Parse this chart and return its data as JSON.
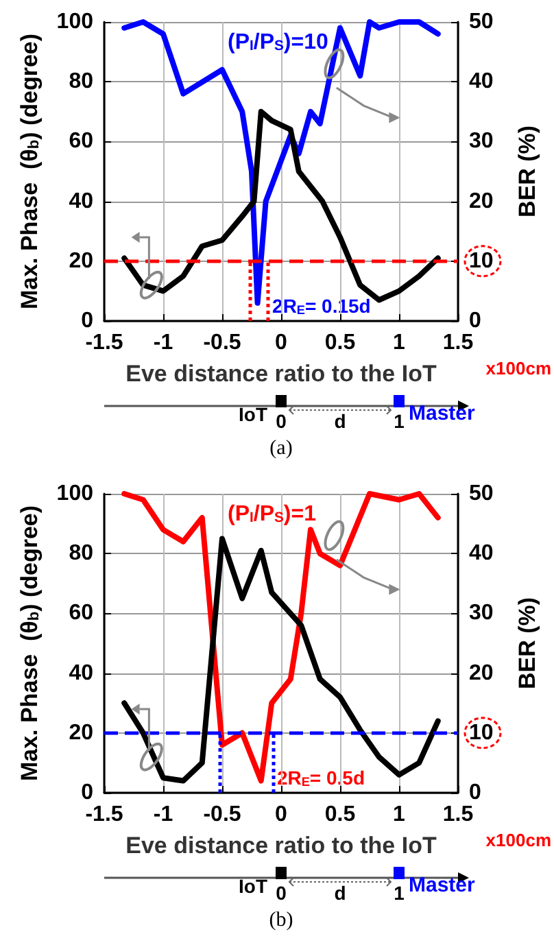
{
  "chart_data": [
    {
      "type": "line",
      "xlabel": "Eve distance ratio to the IoT",
      "ylabel": "Max. Phase  (θ$_{b}$) (degree)",
      "y2label": "BER (%)",
      "xlim": [
        -1.5,
        1.5
      ],
      "xticks": [
        -1.5,
        -1,
        -0.5,
        0,
        0.5,
        1,
        1.5
      ],
      "ylim": [
        0,
        100
      ],
      "yticks": [
        0,
        20,
        40,
        60,
        80,
        100
      ],
      "y2lim": [
        0,
        50
      ],
      "y2ticks": [
        0,
        10,
        20,
        30,
        40,
        50
      ],
      "grid": true,
      "legend": "top left",
      "marker": "none",
      "line_style": "solid",
      "series": [
        {
          "color": "#000000",
          "x": [
            -1.33,
            -1.17,
            -1.0,
            -0.83,
            -0.67,
            -0.5,
            -0.33,
            -0.23,
            -0.17,
            -0.08,
            0.08,
            0.15,
            0.25,
            0.35,
            0.5,
            0.67,
            0.83,
            1.0,
            1.17,
            1.33
          ],
          "values": [
            21,
            12,
            10,
            15,
            25,
            27,
            35,
            40,
            70,
            67,
            64,
            50,
            45,
            40,
            28,
            12,
            7,
            10,
            15,
            21
          ]
        },
        {
          "name": "(P$_{I}$/P$_{S}$)=10",
          "color": "#0000ff",
          "axis": "y2",
          "x": [
            -1.33,
            -1.17,
            -1.0,
            -0.83,
            -0.5,
            -0.33,
            -0.25,
            -0.2,
            -0.13,
            0.08,
            0.15,
            0.25,
            0.33,
            0.5,
            0.67,
            0.75,
            0.83,
            1.0,
            1.17,
            1.33
          ],
          "values": [
            49,
            50,
            48,
            38,
            42,
            35,
            25,
            3,
            20,
            31,
            28,
            35,
            33,
            49,
            41,
            50,
            49,
            50,
            50,
            48
          ]
        }
      ],
      "ref_lines": [
        {
          "axis": "y",
          "value": 20,
          "color": "#ff0000",
          "line_style": "dashed"
        },
        {
          "axis": "x",
          "value": -0.26,
          "color": "#ff0000",
          "line_style": "dotted"
        },
        {
          "axis": "x",
          "value": -0.11,
          "color": "#ff0000",
          "line_style": "dotted"
        }
      ],
      "annotations": [
        "x100cm",
        "IoT",
        "0",
        "d",
        "1",
        "Master",
        "(a)",
        "2R$_{E}$= 0.15d"
      ]
    },
    {
      "type": "line",
      "xlabel": "Eve distance ratio to the IoT",
      "ylabel": "Max. Phase  (θ$_{b}$) (degree)",
      "y2label": "BER (%)",
      "xlim": [
        -1.5,
        1.5
      ],
      "xticks": [
        -1.5,
        -1,
        -0.5,
        0,
        0.5,
        1,
        1.5
      ],
      "ylim": [
        0,
        100
      ],
      "yticks": [
        0,
        20,
        40,
        60,
        80,
        100
      ],
      "y2lim": [
        0,
        50
      ],
      "y2ticks": [
        0,
        10,
        20,
        30,
        40,
        50
      ],
      "grid": true,
      "legend": "top left",
      "marker": "none",
      "line_style": "solid",
      "series": [
        {
          "color": "#000000",
          "x": [
            -1.33,
            -1.17,
            -1.0,
            -0.83,
            -0.67,
            -0.5,
            -0.33,
            -0.17,
            -0.08,
            0.17,
            0.33,
            0.5,
            0.67,
            0.83,
            1.0,
            1.17,
            1.33
          ],
          "values": [
            30,
            20,
            5,
            4,
            10,
            85,
            65,
            81,
            67,
            56,
            38,
            32,
            21,
            12,
            6,
            10,
            24
          ]
        },
        {
          "name": "(P$_{I}$/P$_{S}$)=1",
          "color": "#ff0000",
          "axis": "y2",
          "x": [
            -1.33,
            -1.17,
            -1.0,
            -0.83,
            -0.67,
            -0.5,
            -0.33,
            -0.17,
            -0.08,
            0.08,
            0.17,
            0.25,
            0.33,
            0.5,
            0.75,
            1.0,
            1.17,
            1.33
          ],
          "values": [
            50,
            49,
            44,
            42,
            46,
            8,
            10,
            2,
            15,
            19,
            30,
            44,
            40,
            38,
            50,
            49,
            50,
            46
          ]
        }
      ],
      "ref_lines": [
        {
          "axis": "y",
          "value": 20,
          "color": "#0000ff",
          "line_style": "dashed"
        },
        {
          "axis": "x",
          "value": -0.52,
          "color": "#0000ff",
          "line_style": "dotted"
        },
        {
          "axis": "x",
          "value": -0.07,
          "color": "#0000ff",
          "line_style": "dotted"
        }
      ],
      "annotations": [
        "x100cm",
        "IoT",
        "0",
        "d",
        "1",
        "Master",
        "(b)",
        "2R$_{E}$= 0.5d"
      ]
    }
  ]
}
